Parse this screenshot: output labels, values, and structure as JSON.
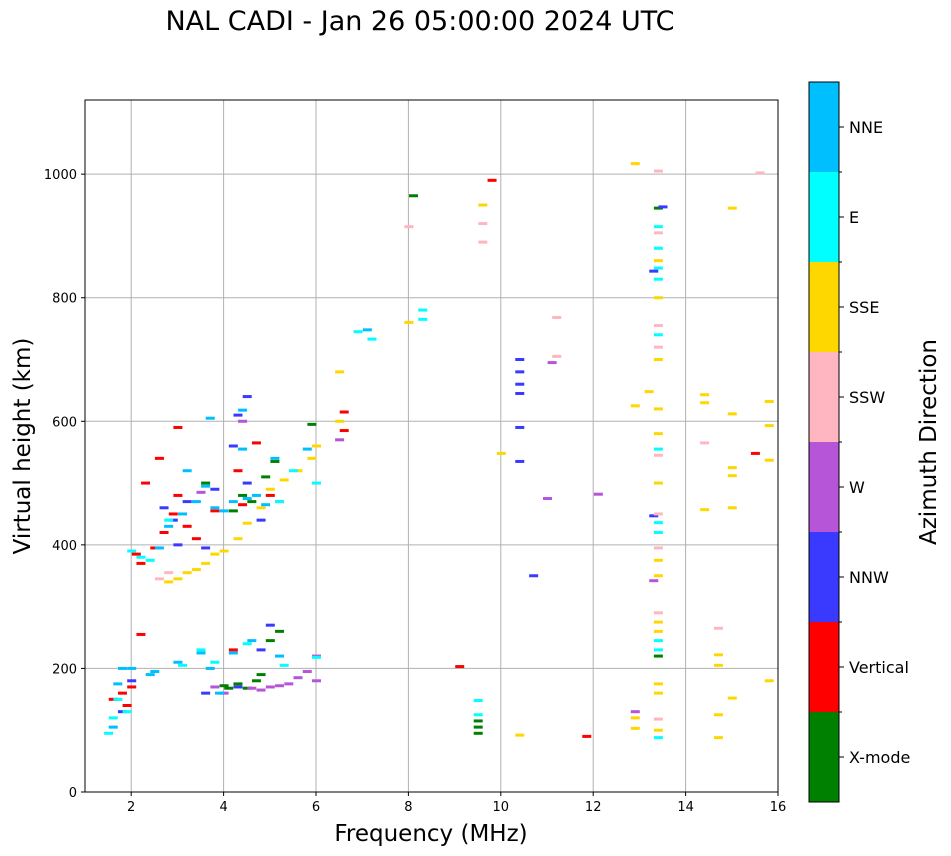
{
  "chart_data": {
    "type": "scatter",
    "title": "NAL CADI - Jan 26 05:00:00 2024 UTC",
    "xlabel": "Frequency (MHz)",
    "ylabel": "Virtual height (km)",
    "xlim": [
      1,
      16
    ],
    "ylim": [
      0,
      1120
    ],
    "xticks": [
      "2",
      "4",
      "6",
      "8",
      "10",
      "12",
      "14",
      "16"
    ],
    "yticks": [
      "0",
      "200",
      "400",
      "600",
      "800",
      "1000"
    ],
    "grid": true,
    "colorbar": {
      "label": "Azimuth Direction",
      "categories": [
        {
          "name": "X-mode",
          "color": "#008000"
        },
        {
          "name": "Vertical",
          "color": "#ff0000"
        },
        {
          "name": "NNW",
          "color": "#3a3aff"
        },
        {
          "name": "W",
          "color": "#b655d8"
        },
        {
          "name": "SSW",
          "color": "#ffb6c1"
        },
        {
          "name": "SSE",
          "color": "#ffd700"
        },
        {
          "name": "E",
          "color": "#00ffff"
        },
        {
          "name": "NNE",
          "color": "#00bfff"
        }
      ]
    },
    "series": [
      {
        "name": "X-mode",
        "points": [
          [
            4.0,
            172
          ],
          [
            4.1,
            168
          ],
          [
            4.3,
            175
          ],
          [
            4.5,
            168
          ],
          [
            4.7,
            180
          ],
          [
            4.8,
            190
          ],
          [
            5.0,
            245
          ],
          [
            5.2,
            260
          ],
          [
            9.5,
            95
          ],
          [
            9.5,
            105
          ],
          [
            9.5,
            115
          ],
          [
            8.1,
            965
          ],
          [
            4.4,
            480
          ],
          [
            4.6,
            470
          ],
          [
            4.2,
            455
          ],
          [
            5.9,
            595
          ],
          [
            5.1,
            535
          ],
          [
            3.6,
            500
          ],
          [
            4.9,
            510
          ],
          [
            13.4,
            945
          ],
          [
            13.4,
            220
          ]
        ]
      },
      {
        "name": "Vertical",
        "points": [
          [
            1.6,
            150
          ],
          [
            1.8,
            160
          ],
          [
            2.0,
            170
          ],
          [
            2.2,
            255
          ],
          [
            1.9,
            140
          ],
          [
            2.1,
            385
          ],
          [
            2.2,
            370
          ],
          [
            2.5,
            395
          ],
          [
            2.7,
            420
          ],
          [
            2.9,
            450
          ],
          [
            3.0,
            480
          ],
          [
            3.2,
            430
          ],
          [
            3.4,
            410
          ],
          [
            3.0,
            590
          ],
          [
            2.6,
            540
          ],
          [
            4.2,
            230
          ],
          [
            4.4,
            465
          ],
          [
            4.7,
            565
          ],
          [
            5.0,
            480
          ],
          [
            6.6,
            585
          ],
          [
            6.6,
            615
          ],
          [
            9.1,
            203
          ],
          [
            9.8,
            990
          ],
          [
            11.85,
            90
          ],
          [
            15.5,
            548
          ],
          [
            3.8,
            455
          ],
          [
            4.3,
            520
          ],
          [
            2.3,
            500
          ]
        ]
      },
      {
        "name": "NNW",
        "points": [
          [
            1.8,
            130
          ],
          [
            2.0,
            180
          ],
          [
            3.6,
            160
          ],
          [
            4.3,
            170
          ],
          [
            4.8,
            230
          ],
          [
            5.0,
            270
          ],
          [
            4.3,
            610
          ],
          [
            4.5,
            640
          ],
          [
            4.2,
            560
          ],
          [
            4.5,
            500
          ],
          [
            3.8,
            490
          ],
          [
            3.2,
            470
          ],
          [
            2.9,
            440
          ],
          [
            3.6,
            395
          ],
          [
            10.4,
            700
          ],
          [
            10.4,
            680
          ],
          [
            10.4,
            660
          ],
          [
            10.4,
            645
          ],
          [
            10.4,
            590
          ],
          [
            10.4,
            535
          ],
          [
            10.7,
            350
          ],
          [
            13.3,
            843
          ],
          [
            13.5,
            947
          ],
          [
            13.3,
            447
          ],
          [
            4.8,
            440
          ],
          [
            3.0,
            400
          ],
          [
            2.7,
            460
          ]
        ]
      },
      {
        "name": "W",
        "points": [
          [
            4.6,
            168
          ],
          [
            4.8,
            165
          ],
          [
            5.0,
            170
          ],
          [
            5.2,
            172
          ],
          [
            5.4,
            175
          ],
          [
            5.6,
            185
          ],
          [
            5.8,
            195
          ],
          [
            6.0,
            180
          ],
          [
            6.0,
            220
          ],
          [
            4.0,
            160
          ],
          [
            3.8,
            170
          ],
          [
            6.5,
            570
          ],
          [
            11.0,
            475
          ],
          [
            11.1,
            695
          ],
          [
            12.1,
            482
          ],
          [
            12.9,
            130
          ],
          [
            13.3,
            342
          ],
          [
            4.4,
            600
          ],
          [
            5.2,
            470
          ],
          [
            3.5,
            485
          ]
        ]
      },
      {
        "name": "SSW",
        "points": [
          [
            2.6,
            345
          ],
          [
            2.8,
            355
          ],
          [
            9.6,
            890
          ],
          [
            9.6,
            920
          ],
          [
            11.2,
            705
          ],
          [
            11.2,
            768
          ],
          [
            13.4,
            1005
          ],
          [
            13.4,
            905
          ],
          [
            13.4,
            755
          ],
          [
            13.4,
            720
          ],
          [
            13.4,
            545
          ],
          [
            13.4,
            450
          ],
          [
            13.4,
            395
          ],
          [
            13.4,
            290
          ],
          [
            13.4,
            118
          ],
          [
            14.4,
            565
          ],
          [
            14.7,
            265
          ],
          [
            15.6,
            1002
          ],
          [
            8.0,
            915
          ]
        ]
      },
      {
        "name": "SSE",
        "points": [
          [
            2.8,
            340
          ],
          [
            3.0,
            345
          ],
          [
            3.2,
            355
          ],
          [
            3.4,
            360
          ],
          [
            3.6,
            370
          ],
          [
            3.8,
            385
          ],
          [
            4.0,
            390
          ],
          [
            4.3,
            410
          ],
          [
            4.5,
            435
          ],
          [
            4.8,
            460
          ],
          [
            5.0,
            490
          ],
          [
            5.3,
            505
          ],
          [
            5.6,
            520
          ],
          [
            5.9,
            540
          ],
          [
            6.0,
            560
          ],
          [
            6.5,
            600
          ],
          [
            6.5,
            680
          ],
          [
            8.0,
            760
          ],
          [
            9.6,
            950
          ],
          [
            10.0,
            548
          ],
          [
            10.4,
            92
          ],
          [
            12.9,
            1017
          ],
          [
            12.9,
            625
          ],
          [
            12.9,
            120
          ],
          [
            12.9,
            103
          ],
          [
            13.2,
            648
          ],
          [
            13.4,
            860
          ],
          [
            13.4,
            800
          ],
          [
            13.4,
            700
          ],
          [
            13.4,
            620
          ],
          [
            13.4,
            580
          ],
          [
            13.4,
            500
          ],
          [
            13.4,
            375
          ],
          [
            13.4,
            350
          ],
          [
            13.4,
            275
          ],
          [
            13.4,
            260
          ],
          [
            13.4,
            175
          ],
          [
            13.4,
            160
          ],
          [
            13.4,
            100
          ],
          [
            14.4,
            643
          ],
          [
            14.4,
            630
          ],
          [
            14.4,
            457
          ],
          [
            14.7,
            222
          ],
          [
            14.7,
            205
          ],
          [
            14.7,
            125
          ],
          [
            14.7,
            88
          ],
          [
            15.0,
            945
          ],
          [
            15.0,
            612
          ],
          [
            15.0,
            525
          ],
          [
            15.0,
            512
          ],
          [
            15.0,
            460
          ],
          [
            15.0,
            152
          ],
          [
            15.8,
            632
          ],
          [
            15.8,
            593
          ],
          [
            15.8,
            537
          ],
          [
            15.8,
            180
          ]
        ]
      },
      {
        "name": "E",
        "points": [
          [
            1.5,
            95
          ],
          [
            1.6,
            120
          ],
          [
            1.7,
            150
          ],
          [
            1.9,
            130
          ],
          [
            2.0,
            390
          ],
          [
            2.2,
            380
          ],
          [
            2.4,
            375
          ],
          [
            3.1,
            205
          ],
          [
            3.5,
            230
          ],
          [
            3.8,
            210
          ],
          [
            4.5,
            240
          ],
          [
            5.3,
            205
          ],
          [
            6.0,
            218
          ],
          [
            6.0,
            500
          ],
          [
            6.9,
            745
          ],
          [
            7.2,
            733
          ],
          [
            8.3,
            780
          ],
          [
            8.3,
            765
          ],
          [
            9.5,
            148
          ],
          [
            9.5,
            125
          ],
          [
            13.4,
            915
          ],
          [
            13.4,
            880
          ],
          [
            13.4,
            848
          ],
          [
            13.4,
            830
          ],
          [
            13.4,
            740
          ],
          [
            13.4,
            555
          ],
          [
            13.4,
            436
          ],
          [
            13.4,
            420
          ],
          [
            13.4,
            245
          ],
          [
            13.4,
            230
          ],
          [
            13.4,
            88
          ],
          [
            5.5,
            520
          ],
          [
            5.2,
            470
          ],
          [
            2.8,
            440
          ]
        ]
      },
      {
        "name": "NNE",
        "points": [
          [
            1.6,
            105
          ],
          [
            1.7,
            175
          ],
          [
            1.8,
            200
          ],
          [
            2.0,
            200
          ],
          [
            2.4,
            190
          ],
          [
            2.5,
            195
          ],
          [
            3.0,
            210
          ],
          [
            3.5,
            225
          ],
          [
            3.7,
            200
          ],
          [
            3.9,
            160
          ],
          [
            4.2,
            225
          ],
          [
            4.6,
            245
          ],
          [
            5.2,
            220
          ],
          [
            2.8,
            430
          ],
          [
            3.1,
            450
          ],
          [
            3.4,
            470
          ],
          [
            3.6,
            495
          ],
          [
            3.8,
            460
          ],
          [
            4.0,
            455
          ],
          [
            4.2,
            470
          ],
          [
            4.5,
            475
          ],
          [
            4.7,
            480
          ],
          [
            3.7,
            605
          ],
          [
            4.4,
            618
          ],
          [
            4.4,
            555
          ],
          [
            5.1,
            540
          ],
          [
            5.8,
            555
          ],
          [
            7.1,
            748
          ],
          [
            3.2,
            520
          ],
          [
            2.6,
            395
          ],
          [
            4.9,
            465
          ]
        ]
      }
    ]
  }
}
